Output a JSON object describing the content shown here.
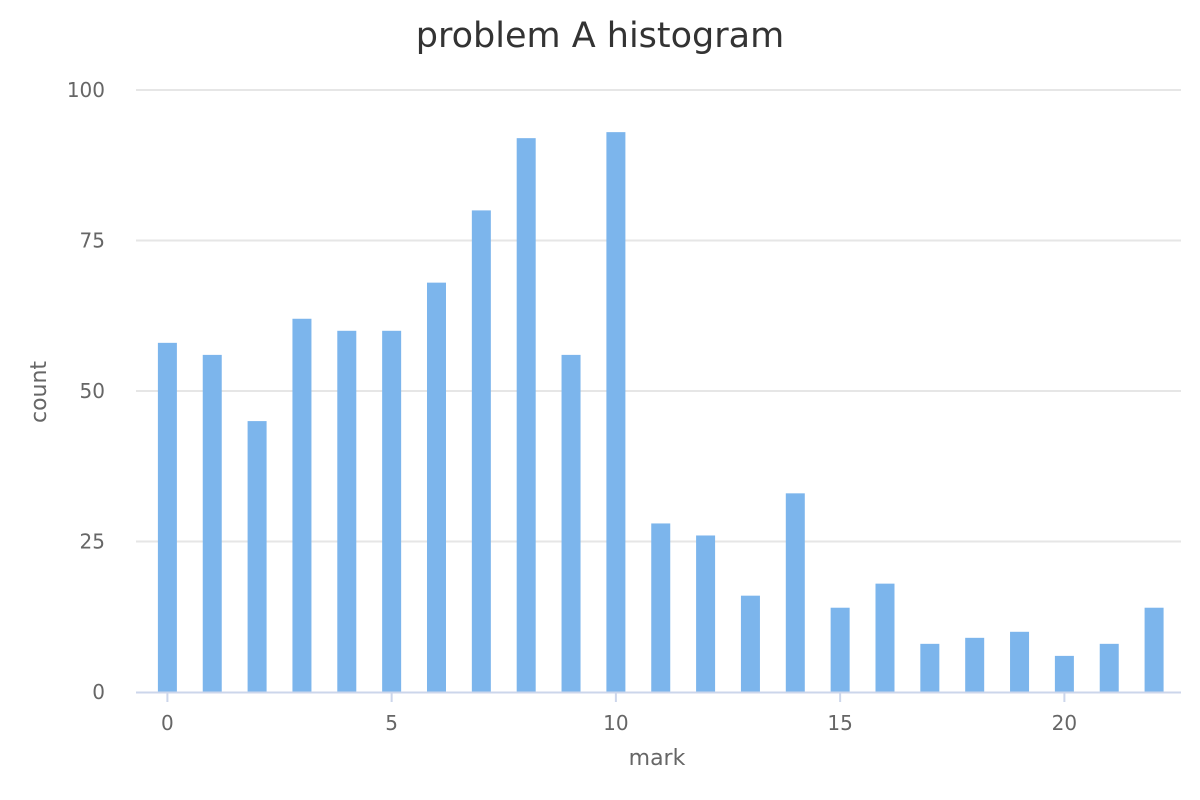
{
  "chart_data": {
    "type": "bar",
    "title": "problem A histogram",
    "xlabel": "mark",
    "ylabel": "count",
    "x": [
      0,
      1,
      2,
      3,
      4,
      5,
      6,
      7,
      8,
      9,
      10,
      11,
      12,
      13,
      14,
      15,
      16,
      17,
      18,
      19,
      20,
      21,
      22
    ],
    "values": [
      58,
      56,
      45,
      62,
      60,
      60,
      68,
      80,
      92,
      56,
      93,
      28,
      26,
      16,
      33,
      14,
      18,
      8,
      9,
      10,
      6,
      8,
      14
    ],
    "ylim": [
      0,
      100
    ],
    "xlim": [
      -0.7,
      22.6
    ],
    "y_ticks": [
      0,
      25,
      50,
      75,
      100
    ],
    "x_ticks": [
      0,
      5,
      10,
      15,
      20
    ],
    "grid": true,
    "legend": "none",
    "bar_color": "#7cb5ec"
  }
}
